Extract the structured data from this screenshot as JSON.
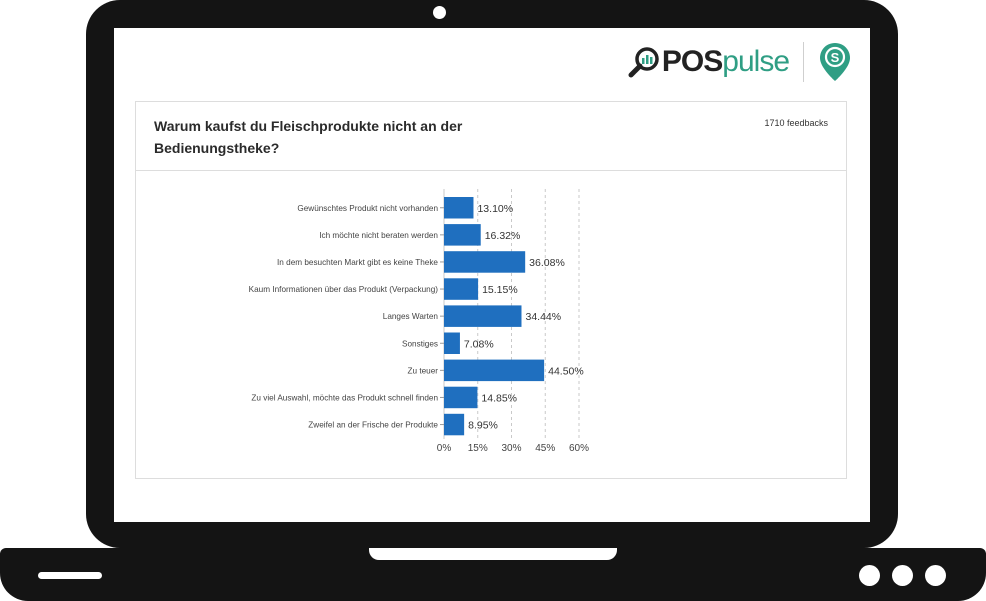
{
  "brand": {
    "name_bold": "POS",
    "name_light": "pulse",
    "accent": "#2f9e84",
    "pin_letter": "S"
  },
  "survey": {
    "question": "Warum kaufst du Fleischprodukte nicht an der Bedienungstheke?",
    "feedbacks": "1710 feedbacks"
  },
  "chart_data": {
    "type": "bar",
    "orientation": "horizontal",
    "title": "Warum kaufst du Fleischprodukte nicht an der Bedienungstheke?",
    "categories": [
      "Gewünschtes Produkt nicht vorhanden",
      "Ich möchte nicht beraten werden",
      "In dem besuchten Markt gibt es keine Theke",
      "Kaum Informationen über das Produkt (Verpackung)",
      "Langes Warten",
      "Sonstiges",
      "Zu teuer",
      "Zu viel Auswahl, möchte das Produkt schnell finden",
      "Zweifel an der Frische der Produkte"
    ],
    "values": [
      13.1,
      16.32,
      36.08,
      15.15,
      34.44,
      7.08,
      44.5,
      14.85,
      8.95
    ],
    "value_labels": [
      "13.10%",
      "16.32%",
      "36.08%",
      "15.15%",
      "34.44%",
      "7.08%",
      "44.50%",
      "14.85%",
      "8.95%"
    ],
    "xlim": [
      0,
      60
    ],
    "xticks": [
      0,
      15,
      30,
      45,
      60
    ],
    "xtick_labels": [
      "0%",
      "15%",
      "30%",
      "45%",
      "60%"
    ],
    "grid": "vertical-dashed",
    "bar_color": "#1f6fbf"
  }
}
